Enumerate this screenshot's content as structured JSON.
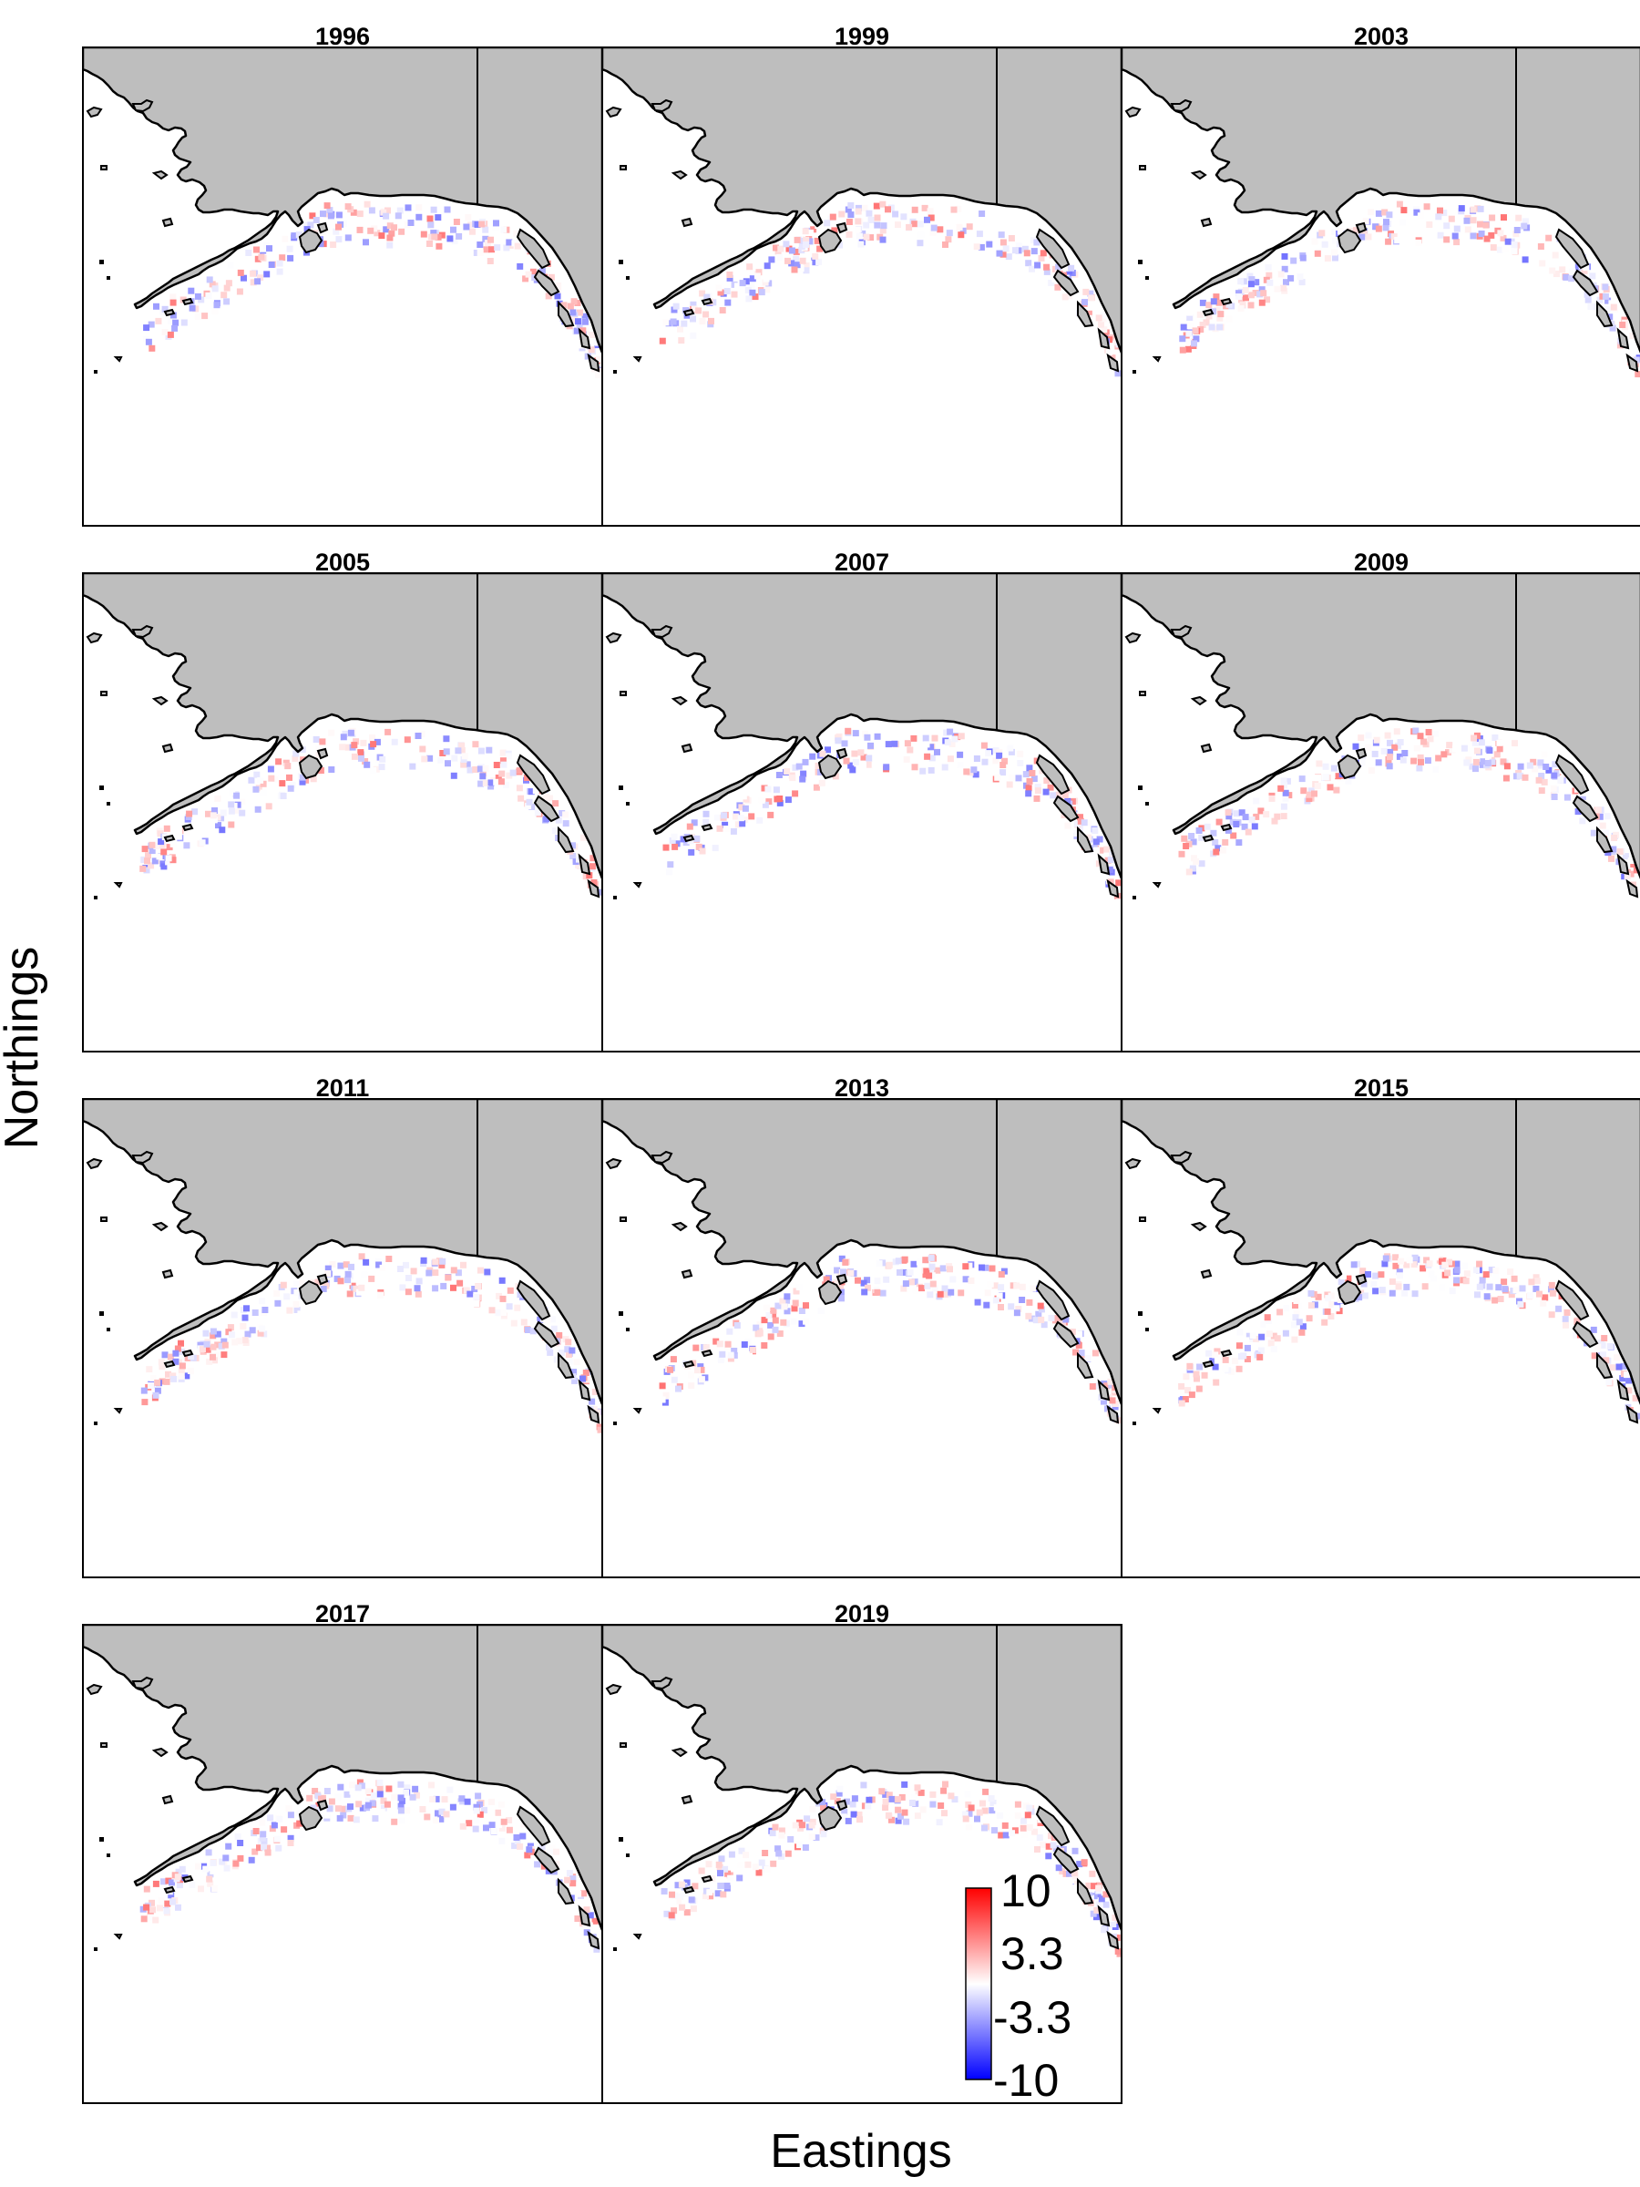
{
  "panels": [
    {
      "year": "1996"
    },
    {
      "year": "1999"
    },
    {
      "year": "2003"
    },
    {
      "year": "2005"
    },
    {
      "year": "2007"
    },
    {
      "year": "2009"
    },
    {
      "year": "2011"
    },
    {
      "year": "2013"
    },
    {
      "year": "2015"
    },
    {
      "year": "2017"
    },
    {
      "year": "2019"
    }
  ],
  "axes": {
    "xlabel": "Eastings",
    "ylabel": "Northings"
  },
  "legend": {
    "labels": [
      "10",
      "3.3",
      "-3.3",
      "-10"
    ],
    "colors": {
      "high": "#ff0000",
      "mid": "#ffffff",
      "low": "#0000ff"
    }
  },
  "colors": {
    "land": "#bebebe",
    "outline": "#000000"
  }
}
